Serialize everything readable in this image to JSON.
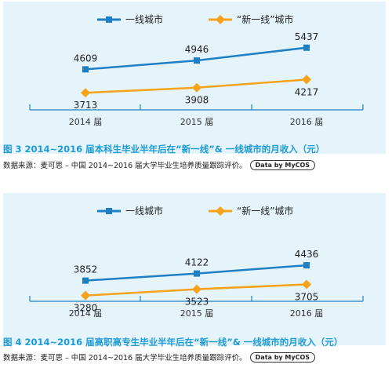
{
  "charts": [
    {
      "caption": "图 3  2014~2016 届本科生毕业半年后在“新一线”& 一线城市的月收入（元）",
      "source": "数据来源：麦可思 – 中国 2014~2016 届大学毕业生培养质量跟踪评价。",
      "badge": "Data by MyCOS"
    },
    {
      "caption": "图 4  2014~2016 届高职高专生毕业半年后在“新一线”& 一线城市的月收入（元）",
      "source": "数据来源：麦可思 – 中国 2014~2016 届大学毕业生培养质量跟踪评价。",
      "badge": "Data by MyCOS"
    }
  ],
  "chart_data": [
    {
      "type": "line",
      "categories": [
        "2014 届",
        "2015 届",
        "2016 届"
      ],
      "series": [
        {
          "name": "一线城市",
          "values": [
            4609,
            4946,
            5437
          ],
          "color": "#1f7fc4",
          "marker": "square"
        },
        {
          "name": "“新一线”城市",
          "values": [
            3713,
            3908,
            4217
          ],
          "color": "#f7a21b",
          "marker": "diamond"
        }
      ],
      "legend": "top",
      "grid": false
    },
    {
      "type": "line",
      "categories": [
        "2014 届",
        "2015 届",
        "2016 届"
      ],
      "series": [
        {
          "name": "一线城市",
          "values": [
            3852,
            4122,
            4436
          ],
          "color": "#1f7fc4",
          "marker": "square"
        },
        {
          "name": "“新一线”城市",
          "values": [
            3280,
            3523,
            3705
          ],
          "color": "#f7a21b",
          "marker": "diamond"
        }
      ],
      "legend": "top",
      "grid": false
    }
  ]
}
